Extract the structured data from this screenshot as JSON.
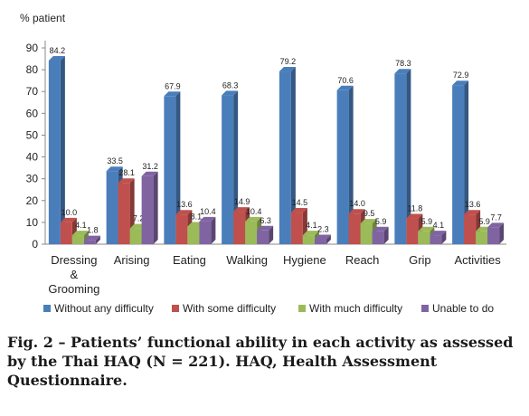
{
  "chart_data": {
    "type": "bar",
    "ylabel": "% patient",
    "ylim": [
      0,
      90
    ],
    "yticks": [
      0,
      10,
      20,
      30,
      40,
      50,
      60,
      70,
      80,
      90
    ],
    "categories": [
      [
        "Dressing",
        "&",
        "Grooming"
      ],
      [
        "Arising"
      ],
      [
        "Eating"
      ],
      [
        "Walking"
      ],
      [
        "Hygiene"
      ],
      [
        "Reach"
      ],
      [
        "Grip"
      ],
      [
        "Activities"
      ]
    ],
    "series": [
      {
        "name": "Without any difficulty",
        "color": "#4a7ebb",
        "values": [
          84.2,
          33.5,
          67.9,
          68.3,
          79.2,
          70.6,
          78.3,
          72.9
        ]
      },
      {
        "name": "With some difficulty",
        "color": "#c0504d",
        "values": [
          10.0,
          28.1,
          13.6,
          14.9,
          14.5,
          14.0,
          11.8,
          13.6
        ]
      },
      {
        "name": "With much difficulty",
        "color": "#9bbb59",
        "values": [
          4.1,
          7.2,
          8.1,
          10.4,
          4.1,
          9.5,
          5.9,
          5.9
        ]
      },
      {
        "name": "Unable to do",
        "color": "#8064a2",
        "values": [
          1.8,
          31.2,
          10.4,
          6.3,
          2.3,
          5.9,
          4.1,
          7.7
        ]
      }
    ],
    "legend_position": "bottom",
    "grid": false
  },
  "caption": "Fig. 2 – Patients’ functional ability in each activity as assessed by the Thai HAQ (N = 221). HAQ, Health Assessment Questionnaire."
}
